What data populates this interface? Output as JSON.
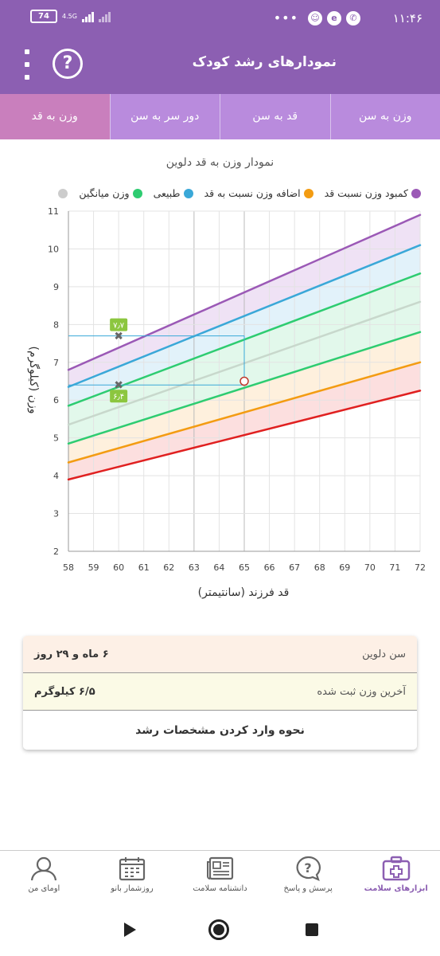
{
  "status_bar": {
    "time": "۱۱:۴۶",
    "battery": "74",
    "network": "4.5G",
    "icons": [
      "whatsapp-icon",
      "app-icon",
      "avatar-icon"
    ]
  },
  "app_bar": {
    "title": "نمودارهای رشد کودک",
    "help_label": "?"
  },
  "tabs": [
    {
      "label": "وزن به سن"
    },
    {
      "label": "قد به سن"
    },
    {
      "label": "دور سر به سن"
    },
    {
      "label": "وزن به قد"
    }
  ],
  "chart_title": "نمودار وزن به قد دلوین",
  "legend": [
    {
      "label": "کمبود وزن نسبت قد",
      "color": "#9b59b6"
    },
    {
      "label": "اضافه وزن نسبت به قد",
      "color": "#f39c12"
    },
    {
      "label": "طبیعی",
      "color": "#3aa8d8"
    },
    {
      "label": "وزن میانگین",
      "color": "#2ecc71"
    },
    {
      "label": "",
      "color": "#cccccc"
    }
  ],
  "chart_data": {
    "type": "line",
    "xlabel": "قد فرزند (سانتیمتر)",
    "ylabel": "وزن (کیلوگرم)",
    "xlim": [
      58,
      72
    ],
    "ylim": [
      2,
      11
    ],
    "x_ticks": [
      "58",
      "59",
      "60",
      "61",
      "62",
      "63",
      "64",
      "65",
      "66",
      "67",
      "68",
      "69",
      "70",
      "71",
      "72"
    ],
    "y_ticks": [
      "2",
      "3",
      "4",
      "5",
      "6",
      "7",
      "8",
      "9",
      "10",
      "11"
    ],
    "x": [
      58,
      72
    ],
    "series": [
      {
        "color": "#9b59b6",
        "values": [
          6.8,
          10.9
        ]
      },
      {
        "color": "#3aa8d8",
        "values": [
          6.35,
          10.1
        ]
      },
      {
        "color": "#2ecc71",
        "values": [
          5.85,
          9.35
        ]
      },
      {
        "color": "#c8d8cc",
        "values": [
          5.35,
          8.6
        ]
      },
      {
        "color": "#2ecc71",
        "values": [
          4.85,
          7.8
        ]
      },
      {
        "color": "#f39c12",
        "values": [
          4.35,
          7.0
        ]
      },
      {
        "color": "#e02020",
        "values": [
          3.9,
          6.25
        ]
      }
    ],
    "bands": [
      {
        "from": 0,
        "to": 1,
        "color": "#e9d8f2"
      },
      {
        "from": 1,
        "to": 2,
        "color": "#d8eef8"
      },
      {
        "from": 2,
        "to": 4,
        "color": "#d8f5e4"
      },
      {
        "from": 4,
        "to": 5,
        "color": "#fdebd2"
      },
      {
        "from": 5,
        "to": 6,
        "color": "#fbd4d4"
      }
    ],
    "markers": [
      {
        "x": 60,
        "y": 7.7,
        "label": "۷٫۷"
      },
      {
        "x": 60,
        "y": 6.4,
        "label": "۶٫۴"
      }
    ],
    "point": {
      "x": 65,
      "y": 6.5
    },
    "grid": true
  },
  "info": {
    "age_label": "سن دلوین",
    "age_value": "۶ ماه و ۲۹ روز",
    "weight_label": "آخرین وزن ثبت شده",
    "weight_value": "۶/۵ کیلوگرم",
    "howto_label": "نحوه وارد کردن مشخصات رشد"
  },
  "bottom_nav": [
    {
      "label": "ابزارهای سلامت",
      "icon": "first-aid-kit-icon",
      "active": true
    },
    {
      "label": "پرسش و پاسخ",
      "icon": "question-bubble-icon",
      "active": false
    },
    {
      "label": "دانشنامه سلامت",
      "icon": "newspaper-icon",
      "active": false
    },
    {
      "label": "روزشمار بانو",
      "icon": "calendar-icon",
      "active": false
    },
    {
      "label": "اومای من",
      "icon": "profile-icon",
      "active": false
    }
  ]
}
